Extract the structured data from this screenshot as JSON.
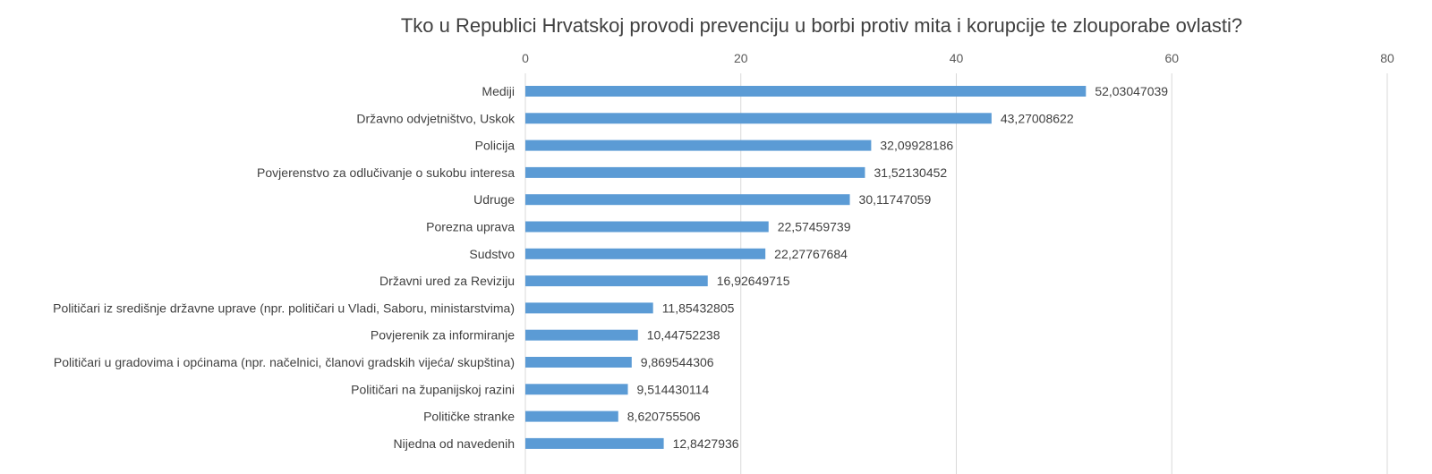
{
  "chart_data": {
    "type": "bar",
    "orientation": "horizontal",
    "title": "Tko u Republici Hrvatskoj provodi prevenciju u borbi protiv mita i korupcije te zlouporabe ovlasti?",
    "categories": [
      "Mediji",
      "Državno odvjetništvo, Uskok",
      "Policija",
      "Povjerenstvo za odlučivanje o sukobu interesa",
      "Udruge",
      "Porezna uprava",
      "Sudstvo",
      "Državni ured za Reviziju",
      "Političari iz središnje državne uprave (npr. političari u Vladi, Saboru, ministarstvima)",
      "Povjerenik za informiranje",
      "Političari u gradovima i općinama (npr. načelnici, članovi gradskih vijeća/ skupština)",
      "Političari na županijskoj razini",
      "Političke stranke",
      "Nijedna od navedenih"
    ],
    "values": [
      52.03047039,
      43.27008622,
      32.09928186,
      31.52130452,
      30.11747059,
      22.57459739,
      22.27767684,
      16.92649715,
      11.85432805,
      10.44752238,
      9.869544306,
      9.514430114,
      8.620755506,
      12.8427936
    ],
    "value_labels": [
      "52,03047039",
      "43,27008622",
      "32,09928186",
      "31,52130452",
      "30,11747059",
      "22,57459739",
      "22,27767684",
      "16,92649715",
      "11,85432805",
      "10,44752238",
      "9,869544306",
      "9,514430114",
      "8,620755506",
      "12,8427936"
    ],
    "x_ticks": [
      "0",
      "20",
      "40",
      "60",
      "80"
    ],
    "xlim": [
      0,
      80
    ],
    "xlabel": "",
    "ylabel": "",
    "grid": true,
    "axis_position": "top",
    "bar_color": "#5b9bd5"
  }
}
